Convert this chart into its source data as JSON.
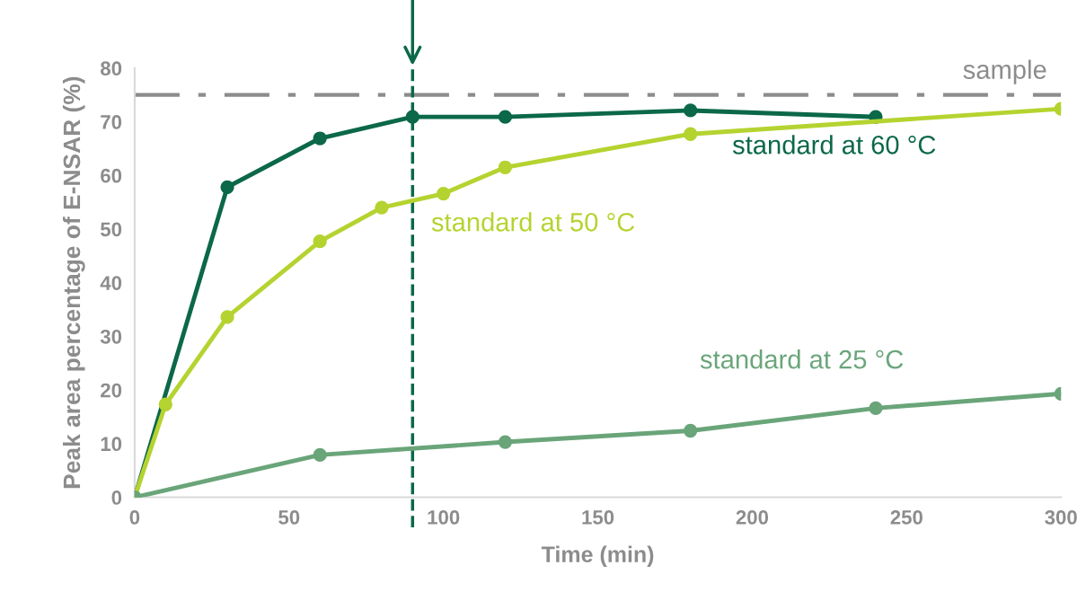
{
  "chart_data": {
    "type": "line",
    "xlabel": "Time (min)",
    "ylabel": "Peak area percentage of E-NSAR (%)",
    "xlim": [
      0,
      300
    ],
    "xticks": [
      0,
      50,
      100,
      150,
      200,
      250,
      300
    ],
    "ylim": [
      0,
      80
    ],
    "yticks": [
      0,
      10,
      20,
      30,
      40,
      50,
      60,
      70,
      80
    ],
    "grid": false,
    "legend": false,
    "marker": "circle",
    "line_style": "solid",
    "series": [
      {
        "name": "standard at 60 °C",
        "color": "#0b6849",
        "x": [
          0,
          30,
          60,
          90,
          120,
          180,
          240
        ],
        "values": [
          0,
          57.8,
          66.9,
          70.9,
          70.9,
          72.1,
          70.9
        ]
      },
      {
        "name": "standard at 50 °C",
        "color": "#b5d330",
        "x": [
          0,
          10,
          30,
          60,
          80,
          100,
          120,
          180,
          300
        ],
        "values": [
          0,
          17.3,
          33.6,
          47.7,
          54,
          56.6,
          61.5,
          67.7,
          72.4
        ]
      },
      {
        "name": "standard at 25 °C",
        "color": "#6aa57a",
        "x": [
          0,
          60,
          120,
          180,
          240,
          300
        ],
        "values": [
          0,
          7.9,
          10.3,
          12.4,
          16.6,
          19.3
        ]
      }
    ],
    "ref_lines": [
      {
        "axis": "y",
        "value": 75,
        "label": "sample",
        "color": "#8c8c8c",
        "line_style": "dashdot"
      },
      {
        "axis": "x",
        "value": 90,
        "color": "#0b6849",
        "line_style": "dashed"
      }
    ]
  }
}
